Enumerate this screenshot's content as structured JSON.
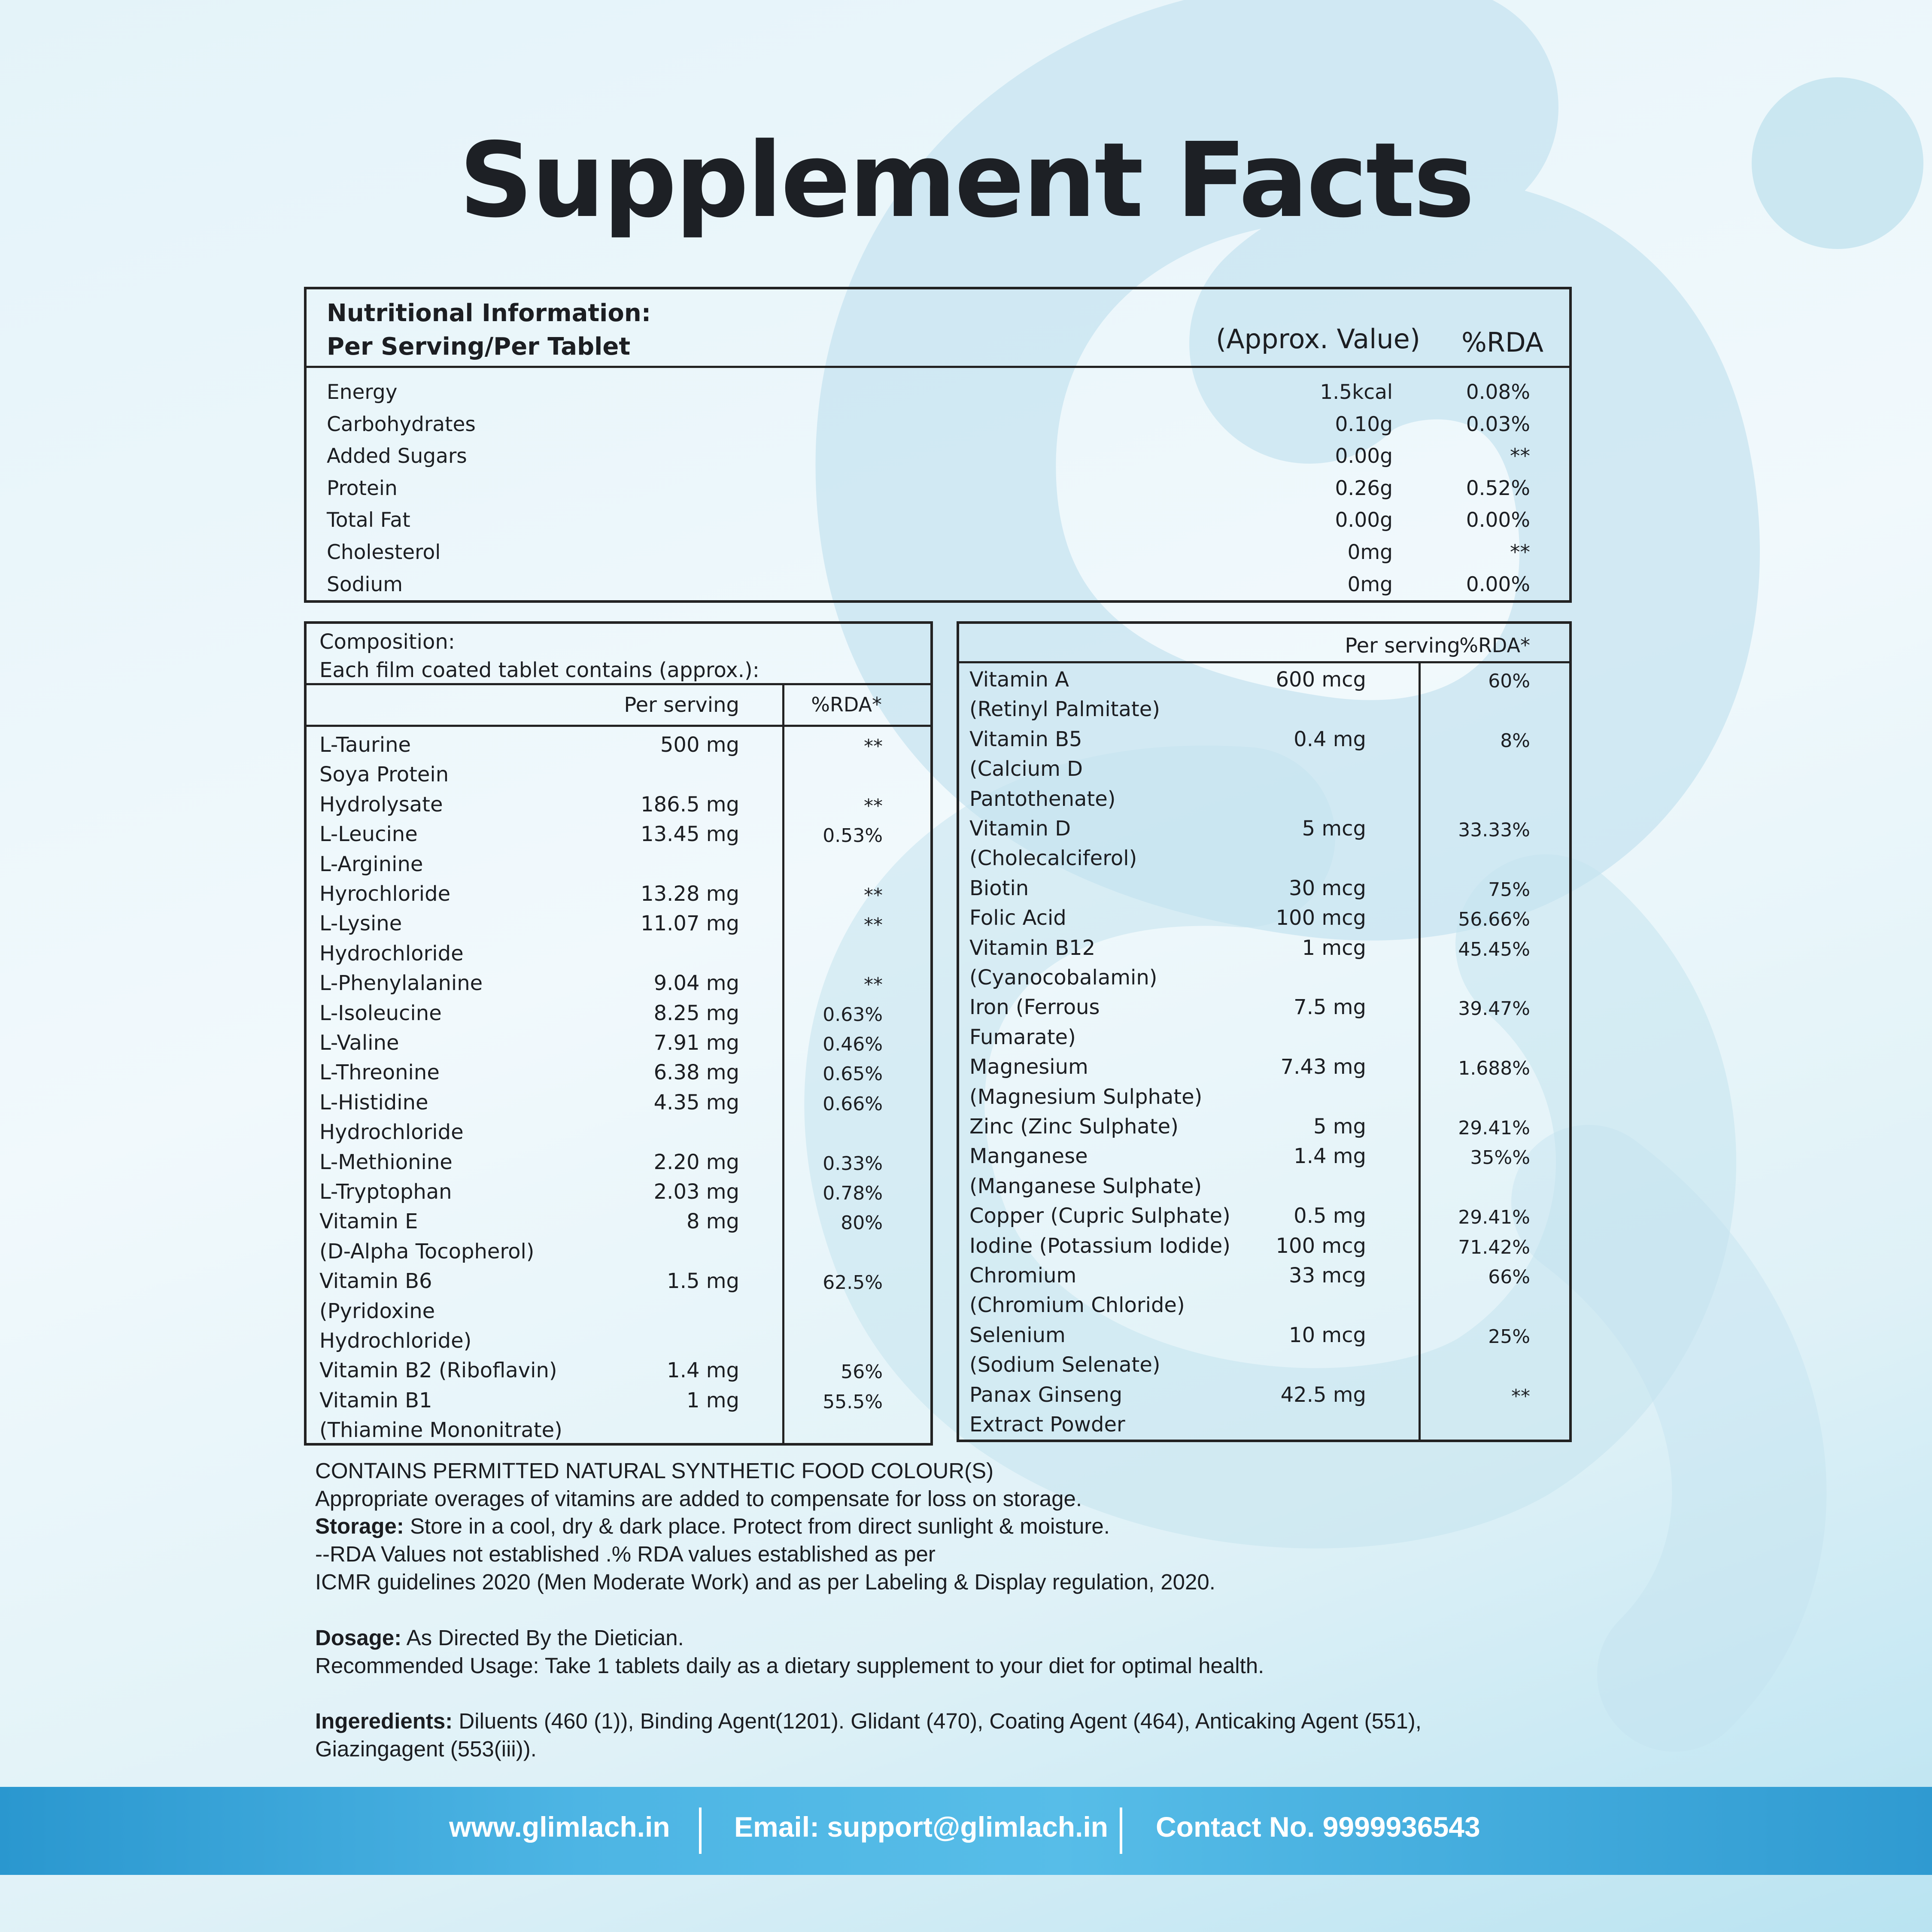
{
  "title": "Supplement Facts",
  "nutrition": {
    "heading1": "Nutritional Information:",
    "heading2": "Per Serving/Per Tablet",
    "col_value": "(Approx. Value)",
    "col_rda": "%RDA",
    "rows": [
      {
        "name": "Energy",
        "value": "1.5kcal",
        "rda": "0.08%"
      },
      {
        "name": "Carbohydrates",
        "value": "0.10g",
        "rda": "0.03%"
      },
      {
        "name": "Added Sugars",
        "value": "0.00g",
        "rda": "**"
      },
      {
        "name": "Protein",
        "value": "0.26g",
        "rda": "0.52%"
      },
      {
        "name": "Total Fat",
        "value": "0.00g",
        "rda": "0.00%"
      },
      {
        "name": "Cholesterol",
        "value": "0mg",
        "rda": "**"
      },
      {
        "name": "Sodium",
        "value": "0mg",
        "rda": "0.00%"
      }
    ]
  },
  "composition": {
    "heading1": "Composition:",
    "heading2": "Each film coated tablet contains (approx.):",
    "col_serving": "Per serving",
    "col_rda": "%RDA*",
    "rows": [
      {
        "lines": [
          "L-Taurine"
        ],
        "amount": "500 mg",
        "rda": "**"
      },
      {
        "lines": [
          "Soya Protein",
          "Hydrolysate"
        ],
        "amount": "186.5 mg",
        "rda": "**",
        "amount_line": 1
      },
      {
        "lines": [
          "L-Leucine"
        ],
        "amount": "13.45 mg",
        "rda": "0.53%"
      },
      {
        "lines": [
          "L-Arginine",
          "Hyrochloride"
        ],
        "amount": "13.28 mg",
        "rda": "**",
        "amount_line": 1
      },
      {
        "lines": [
          "L-Lysine",
          "Hydrochloride"
        ],
        "amount": "11.07 mg",
        "rda": "**"
      },
      {
        "lines": [
          "L-Phenylalanine"
        ],
        "amount": "9.04 mg",
        "rda": "**"
      },
      {
        "lines": [
          "L-Isoleucine"
        ],
        "amount": "8.25 mg",
        "rda": "0.63%"
      },
      {
        "lines": [
          "L-Valine"
        ],
        "amount": "7.91 mg",
        "rda": "0.46%"
      },
      {
        "lines": [
          "L-Threonine"
        ],
        "amount": "6.38 mg",
        "rda": "0.65%"
      },
      {
        "lines": [
          "L-Histidine",
          "Hydrochloride"
        ],
        "amount": "4.35 mg",
        "rda": "0.66%"
      },
      {
        "lines": [
          "L-Methionine"
        ],
        "amount": "2.20 mg",
        "rda": "0.33%"
      },
      {
        "lines": [
          "L-Tryptophan"
        ],
        "amount": "2.03 mg",
        "rda": "0.78%"
      },
      {
        "lines": [
          "Vitamin E",
          "(D-Alpha Tocopherol)"
        ],
        "amount": "8  mg",
        "rda": "80%"
      },
      {
        "lines": [
          "Vitamin B6",
          "(Pyridoxine",
          "Hydrochloride)"
        ],
        "amount": "1.5 mg",
        "rda": "62.5%"
      },
      {
        "lines": [
          "Vitamin B2 (Riboflavin)"
        ],
        "amount": "1.4 mg",
        "rda": "56%"
      },
      {
        "lines": [
          "Vitamin B1",
          "(Thiamine Mononitrate)"
        ],
        "amount": "1 mg",
        "rda": "55.5%"
      }
    ]
  },
  "vitamins": {
    "col_serving": "Per serving",
    "col_rda": "%RDA*",
    "rows": [
      {
        "lines": [
          "Vitamin A",
          "(Retinyl Palmitate)"
        ],
        "amount": "600 mcg",
        "rda": "60%"
      },
      {
        "lines": [
          "Vitamin B5",
          "(Calcium D",
          "Pantothenate)"
        ],
        "amount": "0.4 mg",
        "rda": "8%"
      },
      {
        "lines": [
          "Vitamin D",
          "(Cholecalciferol)"
        ],
        "amount": "5 mcg",
        "rda": "33.33%"
      },
      {
        "lines": [
          "Biotin"
        ],
        "amount": "30 mcg",
        "rda": "75%"
      },
      {
        "lines": [
          "Folic Acid"
        ],
        "amount": "100 mcg",
        "rda": "56.66%"
      },
      {
        "lines": [
          "Vitamin B12",
          "(Cyanocobalamin)"
        ],
        "amount": "1 mcg",
        "rda": "45.45%"
      },
      {
        "lines": [
          "Iron (Ferrous",
          "Fumarate)"
        ],
        "amount": "7.5 mg",
        "rda": "39.47%"
      },
      {
        "lines": [
          "Magnesium",
          "(Magnesium Sulphate)"
        ],
        "amount": "7.43 mg",
        "rda": "1.688%"
      },
      {
        "lines": [
          "Zinc (Zinc Sulphate)"
        ],
        "amount": "5 mg",
        "rda": "29.41%"
      },
      {
        "lines": [
          "Manganese",
          "(Manganese Sulphate)"
        ],
        "amount": "1.4 mg",
        "rda": "35%%"
      },
      {
        "lines": [
          "Copper (Cupric Sulphate)"
        ],
        "amount": "0.5 mg",
        "rda": "29.41%"
      },
      {
        "lines": [
          "Iodine (Potassium Iodide)"
        ],
        "amount": "100 mcg",
        "rda": "71.42%"
      },
      {
        "lines": [
          "Chromium",
          "(Chromium Chloride)"
        ],
        "amount": "33 mcg",
        "rda": "66%"
      },
      {
        "lines": [
          "Selenium",
          "(Sodium Selenate)"
        ],
        "amount": "10 mcg",
        "rda": "25%"
      },
      {
        "lines": [
          "Panax Ginseng",
          "Extract Powder"
        ],
        "amount": "42.5 mg",
        "rda": "**"
      }
    ]
  },
  "footer_notes": {
    "line1": "CONTAINS PERMITTED NATURAL SYNTHETIC FOOD COLOUR(S)",
    "line2": "Appropriate overages of vitamins are added to compensate for loss on storage.",
    "storage_label": "Storage:",
    "storage_text": " Store in a cool, dry & dark place. Protect from direct sunlight & moisture.",
    "rda_line1": "--RDA Values not established .% RDA values established as per",
    "rda_line2": "ICMR guidelines 2020 (Men Moderate Work) and as per Labeling & Display regulation, 2020.",
    "dosage_label": "Dosage:",
    "dosage_text": " As Directed By the Dietician.",
    "usage": "Recommended Usage: Take 1 tablets daily as a dietary supplement to your diet for optimal health.",
    "ingredients_label": "Ingeredients:",
    "ingredients_text": " Diluents (460 (1)), Binding Agent(1201). Glidant (470), Coating Agent (464), Anticaking Agent (551),",
    "ingredients_text2": "Giazingagent (553(iii))."
  },
  "contact_bar": {
    "website": "www.glimlach.in",
    "email": "Email: support@glimlach.in",
    "phone": "Contact No. 9999936543"
  },
  "colors": {
    "bar": "#3aa7da",
    "text": "#1c1e22",
    "border": "#222222"
  }
}
